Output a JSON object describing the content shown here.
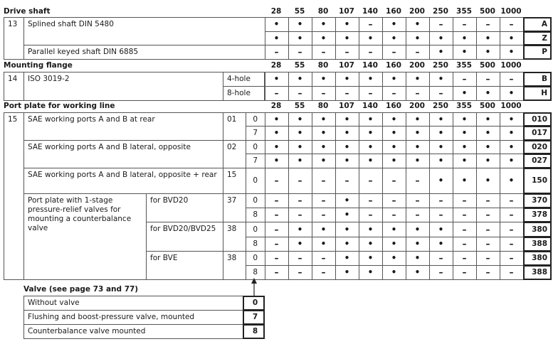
{
  "sections": [
    {
      "title": "Drive shaft",
      "number": "13",
      "sizes": [
        28,
        55,
        80,
        107,
        140,
        160,
        200,
        250,
        355,
        500,
        1000
      ],
      "groups": [
        {
          "label": "Splined shaft DIN 5480",
          "rows": [
            {
              "marks": [
                "•",
                "•",
                "•",
                "•",
                "–",
                "•",
                "•",
                "–",
                "–",
                "–",
                "–"
              ],
              "code": "A"
            },
            {
              "marks": [
                "•",
                "•",
                "•",
                "•",
                "•",
                "•",
                "•",
                "•",
                "•",
                "•",
                "•"
              ],
              "code": "Z"
            }
          ]
        },
        {
          "label": "Parallel keyed shaft DIN 6885",
          "rows": [
            {
              "marks": [
                "–",
                "–",
                "–",
                "–",
                "–",
                "–",
                "–",
                "•",
                "•",
                "•",
                "•"
              ],
              "code": "P"
            }
          ]
        }
      ]
    },
    {
      "title": "Mounting flange",
      "number": "14",
      "sizes": [
        28,
        55,
        80,
        107,
        140,
        160,
        200,
        250,
        355,
        500,
        1000
      ],
      "groups": [
        {
          "label": "ISO 3019-2",
          "rows": [
            {
              "variant": "4-hole",
              "marks": [
                "•",
                "•",
                "•",
                "•",
                "•",
                "•",
                "•",
                "•",
                "–",
                "–",
                "–"
              ],
              "code": "B"
            },
            {
              "variant": "8-hole",
              "marks": [
                "–",
                "–",
                "–",
                "–",
                "–",
                "–",
                "–",
                "–",
                "•",
                "•",
                "•"
              ],
              "code": "H"
            }
          ]
        }
      ]
    },
    {
      "title": "Port plate for working line",
      "number": "15",
      "sizes": [
        28,
        55,
        80,
        107,
        140,
        160,
        200,
        250,
        355,
        500,
        1000
      ],
      "groups": [
        {
          "label": "SAE working ports A and B at rear",
          "option": "01",
          "rows": [
            {
              "option": "0",
              "marks": [
                "•",
                "•",
                "•",
                "•",
                "•",
                "•",
                "•",
                "•",
                "•",
                "•",
                "•"
              ],
              "code": "010"
            },
            {
              "option": "7",
              "marks": [
                "•",
                "•",
                "•",
                "•",
                "•",
                "•",
                "•",
                "•",
                "•",
                "•",
                "•"
              ],
              "code": "017"
            }
          ]
        },
        {
          "label": "SAE working ports A and B lateral, opposite",
          "option": "02",
          "rows": [
            {
              "option": "0",
              "marks": [
                "•",
                "•",
                "•",
                "•",
                "•",
                "•",
                "•",
                "•",
                "•",
                "•",
                "•"
              ],
              "code": "020"
            },
            {
              "option": "7",
              "marks": [
                "•",
                "•",
                "•",
                "•",
                "•",
                "•",
                "•",
                "•",
                "•",
                "•",
                "•"
              ],
              "code": "027"
            }
          ]
        },
        {
          "label": "SAE working ports A and B lateral, opposite + rear",
          "option": "15",
          "rows": [
            {
              "option": "0",
              "marks": [
                "–",
                "–",
                "–",
                "–",
                "–",
                "–",
                "–",
                "•",
                "•",
                "•",
                "•"
              ],
              "code": "150"
            }
          ]
        },
        {
          "label": "Port plate with 1-stage pressure-relief valves for mounting a counterbalance valve",
          "subgroups": [
            {
              "label": "for BVD20",
              "option": "37",
              "rows": [
                {
                  "option": "0",
                  "marks": [
                    "–",
                    "–",
                    "–",
                    "•",
                    "–",
                    "–",
                    "–",
                    "–",
                    "–",
                    "–",
                    "–"
                  ],
                  "code": "370"
                },
                {
                  "option": "8",
                  "marks": [
                    "–",
                    "–",
                    "–",
                    "•",
                    "–",
                    "–",
                    "–",
                    "–",
                    "–",
                    "–",
                    "–"
                  ],
                  "code": "378"
                }
              ]
            },
            {
              "label": "for BVD20/BVD25",
              "option": "38",
              "rows": [
                {
                  "option": "0",
                  "marks": [
                    "–",
                    "•",
                    "•",
                    "•",
                    "•",
                    "•",
                    "•",
                    "•",
                    "–",
                    "–",
                    "–"
                  ],
                  "code": "380"
                },
                {
                  "option": "8",
                  "marks": [
                    "–",
                    "•",
                    "•",
                    "•",
                    "•",
                    "•",
                    "•",
                    "•",
                    "–",
                    "–",
                    "–"
                  ],
                  "code": "388"
                }
              ]
            },
            {
              "label": "for BVE",
              "option": "38",
              "rows": [
                {
                  "option": "0",
                  "marks": [
                    "–",
                    "–",
                    "–",
                    "•",
                    "•",
                    "•",
                    "•",
                    "–",
                    "–",
                    "–",
                    "–"
                  ],
                  "code": "380"
                },
                {
                  "option": "8",
                  "marks": [
                    "–",
                    "–",
                    "–",
                    "•",
                    "•",
                    "•",
                    "•",
                    "–",
                    "–",
                    "–",
                    "–"
                  ],
                  "code": "388"
                }
              ]
            }
          ]
        }
      ]
    }
  ],
  "valve": {
    "title": "Valve (see page 73 and 77)",
    "rows": [
      {
        "label": "Without valve",
        "code": "0"
      },
      {
        "label": "Flushing and boost-pressure valve, mounted",
        "code": "7"
      },
      {
        "label": "Counterbalance valve mounted",
        "code": "8"
      }
    ]
  }
}
